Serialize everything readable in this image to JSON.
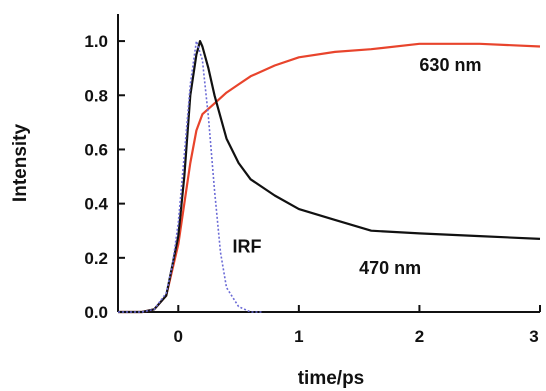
{
  "chart_data": {
    "type": "line",
    "title": "",
    "xlabel": "time/ps",
    "ylabel": "Intensity",
    "xlim": [
      -0.5,
      3
    ],
    "ylim": [
      0,
      1.1
    ],
    "x_ticks": [
      0,
      1,
      2,
      3
    ],
    "x_tick_labels": [
      "0",
      "1",
      "2",
      "3"
    ],
    "y_ticks": [
      0.0,
      0.2,
      0.4,
      0.6,
      0.8,
      1.0
    ],
    "y_tick_labels": [
      "0.0",
      "0.2",
      "0.4",
      "0.6",
      "0.8",
      "1.0"
    ],
    "grid": false,
    "legend": "none",
    "annotations": [
      {
        "text": "630 nm",
        "x": 2.0,
        "y": 0.89
      },
      {
        "text": "470 nm",
        "x": 1.5,
        "y": 0.14
      },
      {
        "text": "IRF",
        "x": 0.45,
        "y": 0.22
      }
    ],
    "series": [
      {
        "color": "#e8442c",
        "dash": "solid",
        "x": [
          -0.5,
          -0.3,
          -0.2,
          -0.1,
          0.0,
          0.05,
          0.1,
          0.15,
          0.2,
          0.3,
          0.4,
          0.5,
          0.6,
          0.8,
          1.0,
          1.3,
          1.6,
          2.0,
          2.5,
          3.0
        ],
        "y": [
          0.0,
          0.0,
          0.01,
          0.06,
          0.25,
          0.4,
          0.55,
          0.67,
          0.73,
          0.77,
          0.81,
          0.84,
          0.87,
          0.91,
          0.94,
          0.96,
          0.97,
          0.99,
          0.99,
          0.98
        ]
      },
      {
        "color": "#111111",
        "dash": "solid",
        "x": [
          -0.5,
          -0.3,
          -0.2,
          -0.1,
          0.0,
          0.05,
          0.1,
          0.15,
          0.18,
          0.2,
          0.25,
          0.3,
          0.4,
          0.5,
          0.6,
          0.8,
          1.0,
          1.3,
          1.6,
          2.0,
          2.5,
          3.0
        ],
        "y": [
          0.0,
          0.0,
          0.01,
          0.06,
          0.28,
          0.5,
          0.8,
          0.95,
          1.0,
          0.98,
          0.9,
          0.8,
          0.64,
          0.55,
          0.49,
          0.43,
          0.38,
          0.34,
          0.3,
          0.29,
          0.28,
          0.27
        ]
      },
      {
        "color": "#6b6bd6",
        "dash": "dotted",
        "x": [
          -0.5,
          -0.3,
          -0.2,
          -0.1,
          -0.05,
          0.0,
          0.05,
          0.1,
          0.15,
          0.2,
          0.25,
          0.3,
          0.35,
          0.4,
          0.5,
          0.6,
          0.7
        ],
        "y": [
          0.0,
          0.0,
          0.01,
          0.07,
          0.17,
          0.33,
          0.58,
          0.84,
          1.0,
          0.93,
          0.72,
          0.45,
          0.22,
          0.09,
          0.02,
          0.0,
          0.0
        ]
      }
    ]
  }
}
